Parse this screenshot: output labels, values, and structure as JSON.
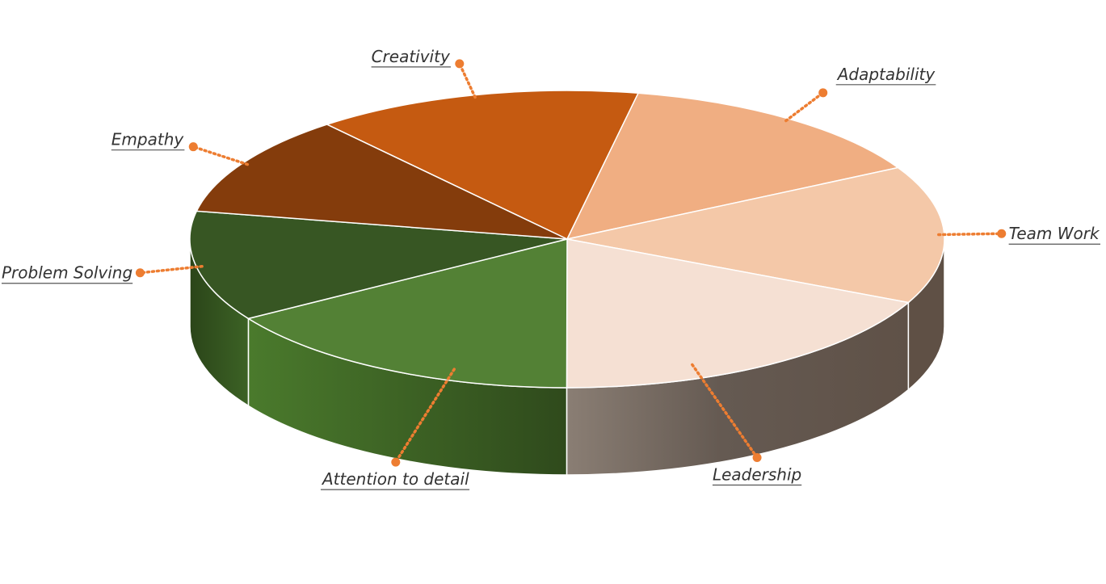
{
  "chart_data": {
    "type": "pie",
    "title": "",
    "style": "3d",
    "categories": [
      "Creativity",
      "Adaptability",
      "Team Work",
      "Leadership",
      "Attention to detail",
      "Problem Solving",
      "Empathy"
    ],
    "values": [
      14,
      14,
      15,
      18,
      16,
      12,
      11
    ],
    "colors": [
      "#C55A11",
      "#F0AE82",
      "#F4C8A8",
      "#F5E0D3",
      "#538135",
      "#375623",
      "#843C0C"
    ],
    "legend": "none",
    "labels_position": "outside-with-leaders"
  }
}
